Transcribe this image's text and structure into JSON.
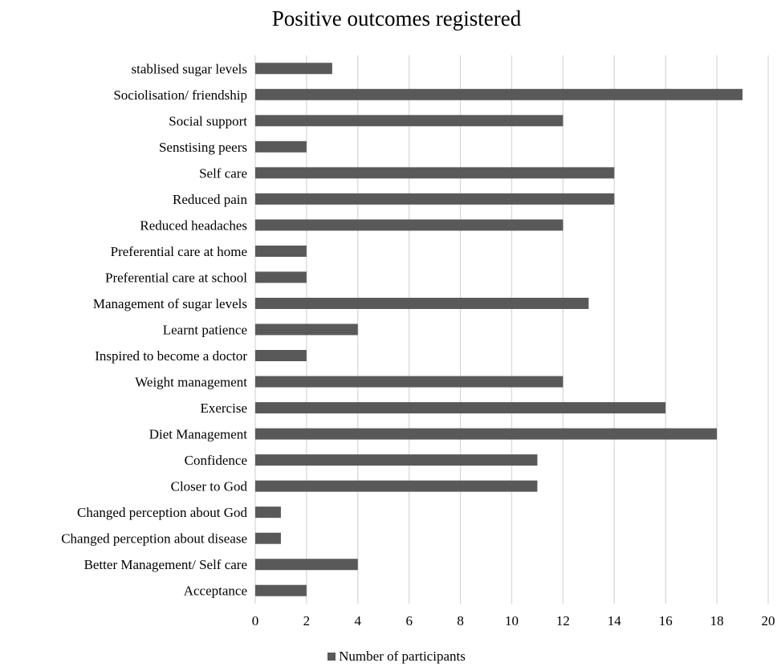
{
  "chart_data": {
    "type": "bar",
    "orientation": "horizontal",
    "title": "Positive outcomes registered",
    "xlabel": "",
    "ylabel": "",
    "categories": [
      "stablised sugar levels",
      "Sociolisation/ friendship",
      "Social support",
      "Senstising peers",
      "Self care",
      "Reduced pain",
      "Reduced headaches",
      "Preferential care at home",
      "Preferential care at school",
      "Management of sugar levels",
      "Learnt patience",
      "Inspired to become a doctor",
      "Weight management",
      "Exercise",
      "Diet Management",
      "Confidence",
      "Closer to God",
      "Changed perception about God",
      "Changed perception about disease",
      "Better Management/ Self care",
      "Acceptance"
    ],
    "series": [
      {
        "name": "Number of participants",
        "color": "#595959",
        "values": [
          3,
          19,
          12,
          2,
          14,
          14,
          12,
          2,
          2,
          13,
          4,
          2,
          12,
          16,
          18,
          11,
          11,
          1,
          1,
          4,
          2
        ]
      }
    ],
    "xlim": [
      0,
      20
    ],
    "xticks": [
      0,
      2,
      4,
      6,
      8,
      10,
      12,
      14,
      16,
      18,
      20
    ],
    "grid": "vertical",
    "legend": "bottom"
  }
}
